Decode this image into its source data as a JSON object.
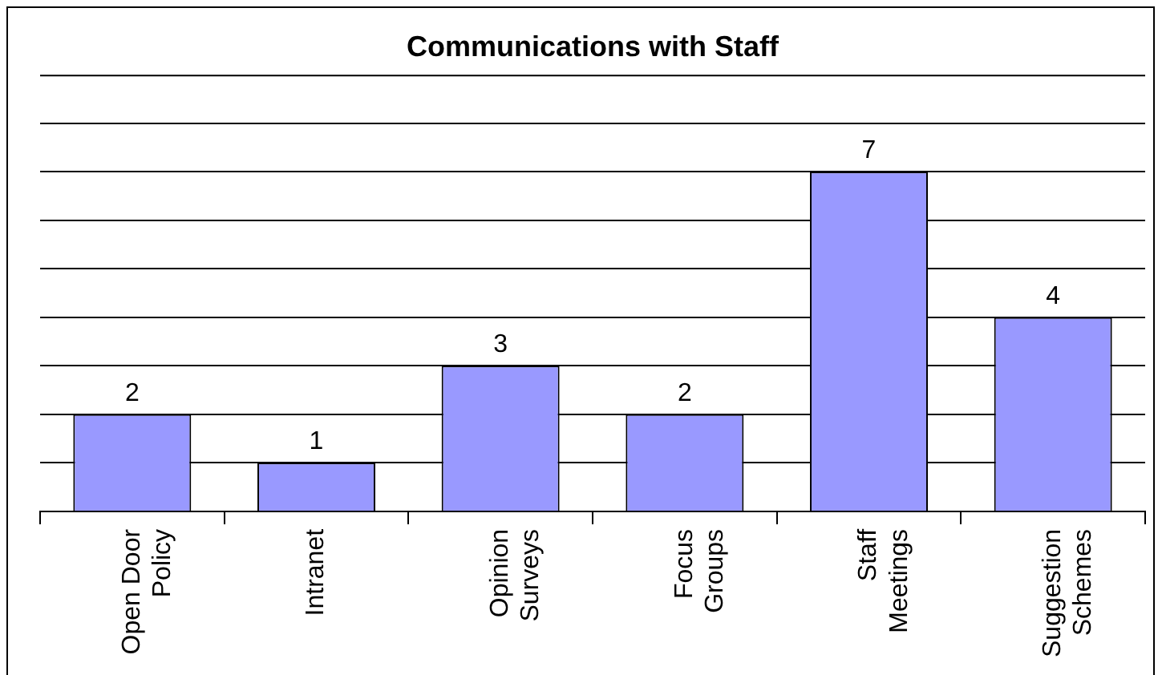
{
  "chart_data": {
    "type": "bar",
    "title": "Communications with Staff",
    "categories": [
      "Open Door Policy",
      "Intranet",
      "Opinion Surveys",
      "Focus Groups",
      "Staff Meetings",
      "Suggestion Schemes"
    ],
    "values": [
      2,
      1,
      3,
      2,
      7,
      4
    ],
    "color": "#9999ff",
    "ylim": [
      0,
      9
    ],
    "yticks": [
      {
        "value": 0,
        "label": null
      },
      {
        "value": 1,
        "label": null
      },
      {
        "value": 2,
        "label": null
      },
      {
        "value": 3,
        "label": null
      },
      {
        "value": 4,
        "label": null
      },
      {
        "value": 5,
        "label": null
      },
      {
        "value": 6,
        "label": null
      },
      {
        "value": 7,
        "label": null
      },
      {
        "value": 8,
        "label": null
      }
    ],
    "grid": "y",
    "tick_labels": "x",
    "data_labels": true
  }
}
